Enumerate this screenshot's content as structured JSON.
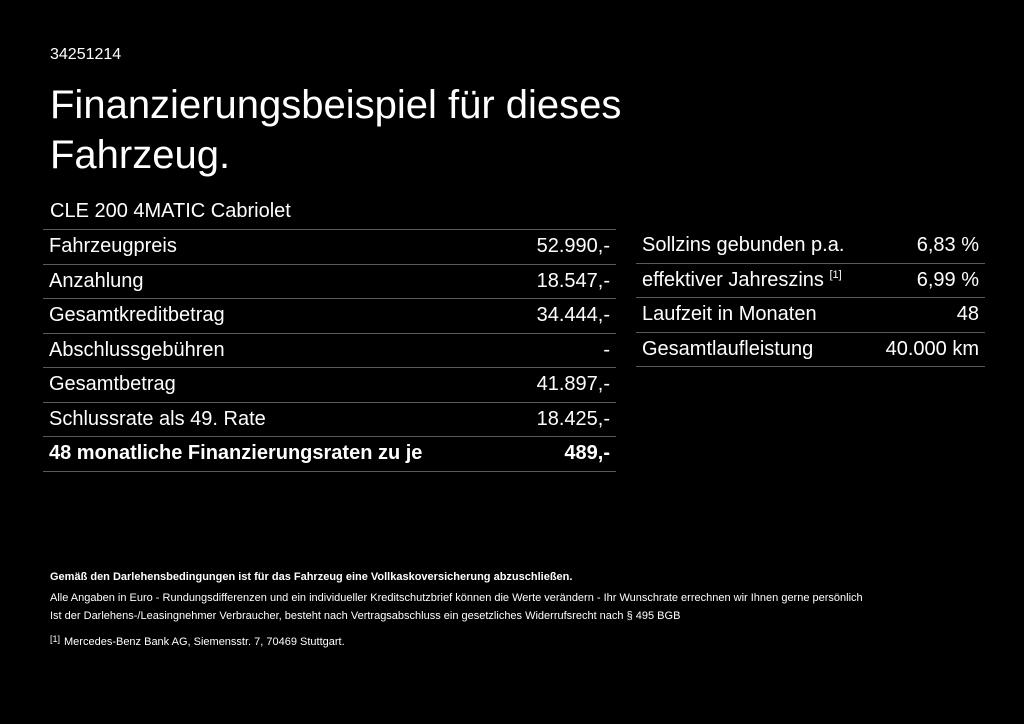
{
  "code": "34251214",
  "title": "Finanzierungsbeispiel für dieses Fahrzeug.",
  "model": "CLE 200 4MATIC Cabriolet",
  "left_rows": [
    {
      "label": "Fahrzeugpreis",
      "value": "52.990,-"
    },
    {
      "label": "Anzahlung",
      "value": "18.547,-"
    },
    {
      "label": "Gesamtkreditbetrag",
      "value": "34.444,-"
    },
    {
      "label": "Abschlussgebühren",
      "value": "-"
    },
    {
      "label": "Gesamtbetrag",
      "value": "41.897,-"
    },
    {
      "label": "Schlussrate als 49. Rate",
      "value": "18.425,-"
    },
    {
      "label": "48 monatliche Finanzierungsraten zu je",
      "value": "489,-"
    }
  ],
  "right_rows": [
    {
      "label": "Sollzins gebunden p.a.",
      "value": "6,83 %"
    },
    {
      "label": "effektiver Jahreszins",
      "sup": "[1]",
      "value": "6,99 %"
    },
    {
      "label": "Laufzeit in Monaten",
      "value": "48"
    },
    {
      "label": "Gesamtlaufleistung",
      "value": "40.000 km"
    }
  ],
  "notes": [
    "Gemäß den Darlehensbedingungen ist für das Fahrzeug eine Vollkaskoversicherung abzuschließen.",
    "Alle Angaben in Euro - Rundungsdifferenzen und ein individueller Kreditschutzbrief können die Werte verändern - Ihr Wunschrate errechnen wir Ihnen gerne persönlich",
    "Ist der Darlehens-/Leasingnehmer Verbraucher, besteht nach Vertragsabschluss ein gesetzliches Widerrufsrecht nach § 495 BGB"
  ],
  "footnote": {
    "marker": "[1]",
    "text": "Mercedes-Benz Bank AG, Siemensstr. 7, 70469 Stuttgart."
  }
}
